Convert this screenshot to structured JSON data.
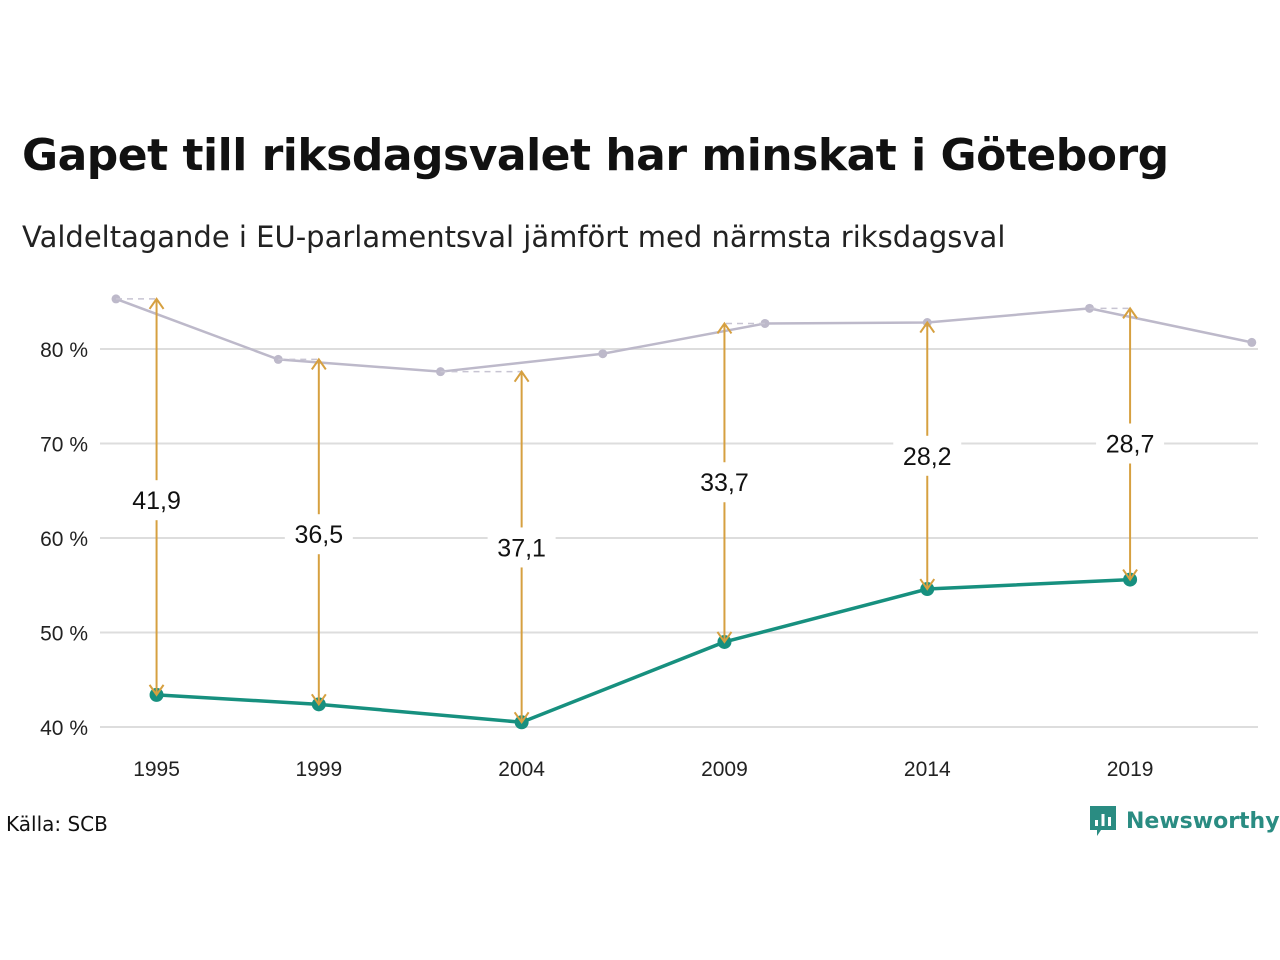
{
  "header": {
    "title": "Gapet till riksdagsvalet har minskat i Göteborg",
    "subtitle": "Valdeltagande i EU-parlamentsval jämfört med närmsta riksdagsval"
  },
  "footer": {
    "source": "Källa: SCB",
    "brand": "Newsworthy",
    "brand_icon": "bar-chart-icon"
  },
  "colors": {
    "eu_line": "#17907f",
    "riksdag_line": "#bdb9ca",
    "gap_arrow": "#d6a040",
    "grid": "#dddddd",
    "brand": "#2a8c82"
  },
  "chart_data": {
    "type": "line",
    "title": "Gapet till riksdagsvalet har minskat i Göteborg",
    "subtitle": "Valdeltagande i EU-parlamentsval jämfört med närmsta riksdagsval",
    "xlabel": "",
    "ylabel": "",
    "ylim": [
      38,
      87
    ],
    "xlim": [
      1994.0,
      2022.4
    ],
    "grid": true,
    "y_ticks": [
      40,
      50,
      60,
      70,
      80
    ],
    "y_tick_labels": [
      "40 %",
      "50 %",
      "60 %",
      "70 %",
      "80 %"
    ],
    "x_ticks": [
      1995,
      1999,
      2004,
      2009,
      2014,
      2019
    ],
    "x_tick_labels": [
      "1995",
      "1999",
      "2004",
      "2009",
      "2014",
      "2019"
    ],
    "series": [
      {
        "key": "riksdag",
        "x": [
          1994,
          1998,
          2002,
          2006,
          2010,
          2014,
          2018,
          2022
        ],
        "y": [
          85.3,
          78.9,
          77.6,
          79.5,
          82.7,
          82.8,
          84.3,
          80.7
        ]
      },
      {
        "key": "eu",
        "x": [
          1995,
          1999,
          2004,
          2009,
          2014,
          2019
        ],
        "y": [
          43.4,
          42.4,
          40.5,
          49.0,
          54.6,
          55.6
        ]
      }
    ],
    "gaps": [
      {
        "x": 1995,
        "from": 43.4,
        "to": 85.3,
        "label": "41,9",
        "label_y": 64.0
      },
      {
        "x": 1999,
        "from": 42.4,
        "to": 78.9,
        "label": "36,5",
        "label_y": 60.4
      },
      {
        "x": 2004,
        "from": 40.5,
        "to": 77.6,
        "label": "37,1",
        "label_y": 59.0
      },
      {
        "x": 2009,
        "from": 49.0,
        "to": 82.7,
        "label": "33,7",
        "label_y": 65.9
      },
      {
        "x": 2014,
        "from": 54.6,
        "to": 82.8,
        "label": "28,2",
        "label_y": 68.7
      },
      {
        "x": 2019,
        "from": 55.6,
        "to": 84.3,
        "label": "28,7",
        "label_y": 70.0
      }
    ]
  }
}
